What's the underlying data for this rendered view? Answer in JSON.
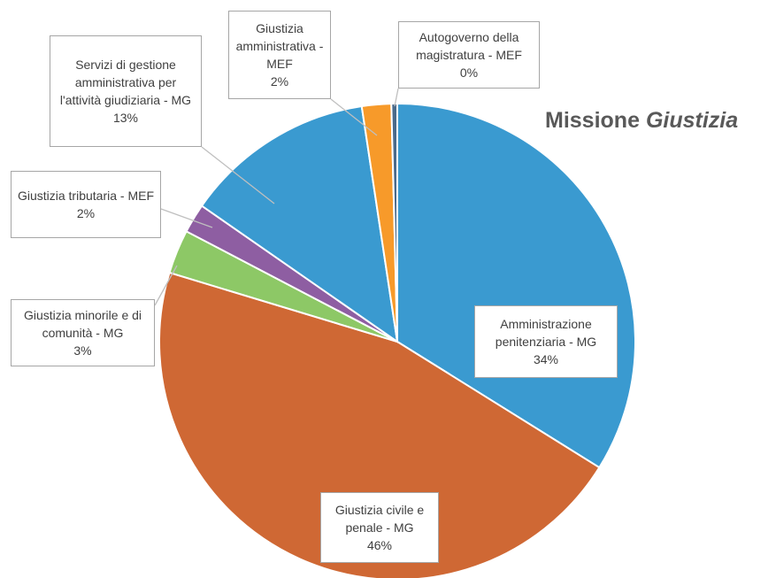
{
  "chart_data": {
    "type": "pie",
    "title": {
      "text": "Missione",
      "emphasis": "Giustizia"
    },
    "categories": [
      "Amministrazione penitenziaria - MG",
      "Giustizia civile e penale - MG",
      "Giustizia minorile e di comunità - MG",
      "Giustizia tributaria - MEF",
      "Servizi di gestione amministrativa per l'attività giudiziaria - MG",
      "Giustizia amministrativa - MEF",
      "Autogoverno della magistratura - MEF"
    ],
    "values": [
      34,
      46,
      3,
      2,
      13,
      2,
      0.4
    ],
    "value_labels": [
      "34%",
      "46%",
      "3%",
      "2%",
      "13%",
      "2%",
      "0%"
    ],
    "colors": [
      "#3a9ad0",
      "#cf6834",
      "#8dc866",
      "#8e5ea2",
      "#3a9ad0",
      "#f79a2a",
      "#4a6a8a"
    ]
  }
}
